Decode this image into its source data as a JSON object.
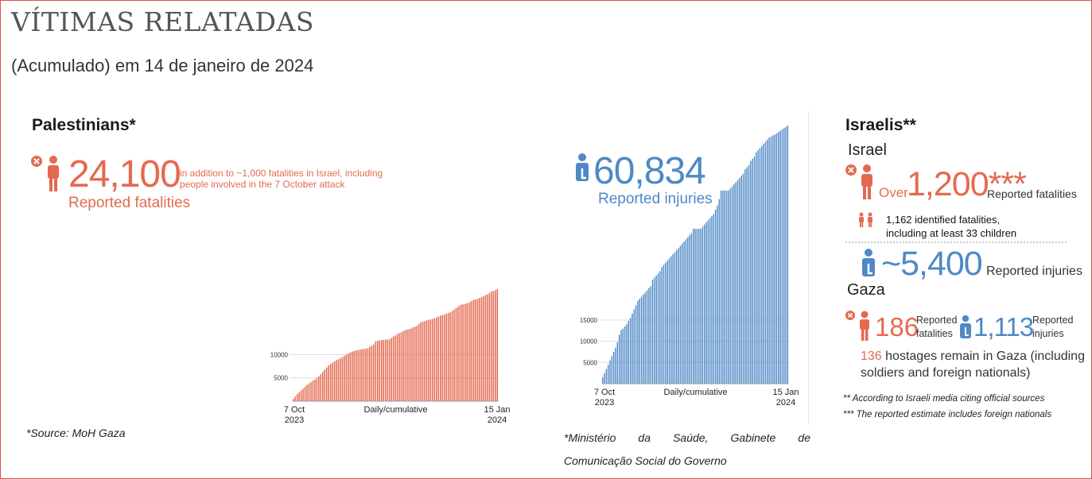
{
  "title": "VÍTIMAS RELATADAS",
  "subtitle": "(Acumulado) em 14 de janeiro de 2024",
  "palestinians": {
    "heading": "Palestinians*",
    "fatalities_value": "24,100",
    "fatalities_note_line1": "in addition to ~1,000 fatalities in Israel, including",
    "fatalities_note_line2": "people involved in the 7 October attack",
    "fatalities_label": "Reported fatalities",
    "injuries_value": "60,834",
    "injuries_label": "Reported injuries",
    "source_left": "*Source: MoH Gaza",
    "source_right_line1": "*Ministério da Saúde, Gabinete de",
    "source_right_line2": "Comunicação Social do Governo"
  },
  "israelis": {
    "heading": "Israelis**",
    "israel_heading": "Israel",
    "israel_over": "Over",
    "israel_fatalities_value": "1,200***",
    "israel_fatalities_label": "Reported fatalities",
    "identified_line1": "1,162 identified fatalities,",
    "identified_line2": "including at least 33 children",
    "israel_injuries_value": "~5,400",
    "israel_injuries_label": "Reported injuries",
    "gaza_heading": "Gaza",
    "gaza_fatalities_value": "186",
    "gaza_fatalities_label_line1": "Reported",
    "gaza_fatalities_label_line2": "fatalities",
    "gaza_injuries_value": "1,113",
    "gaza_injuries_label_line1": "Reported",
    "gaza_injuries_label_line2": "injuries",
    "hostages_number": "136",
    "hostages_text_line1": "hostages remain in Gaza (including",
    "hostages_text_line2": "soldiers and foreign nationals)",
    "footnote1": "** According to Israeli media citing official sources",
    "footnote2": "*** The reported estimate includes foreign nationals"
  },
  "colors": {
    "red": "#e46a4f",
    "blue": "#4f89c6",
    "text": "#333333"
  },
  "icons": [
    "fatality-person-icon",
    "injured-person-icon",
    "children-icon"
  ],
  "chart_data": [
    {
      "type": "bar",
      "name": "fatalities",
      "color": "#e46a4f",
      "xlabel": "Daily/cumulative",
      "x_start_label": [
        "7 Oct",
        "2023"
      ],
      "x_end_label": [
        "15 Jan",
        "2024"
      ],
      "ylim": [
        0,
        24100
      ],
      "yticks": [
        5000,
        10000
      ],
      "values": [
        500,
        1000,
        1500,
        1900,
        2300,
        2700,
        3100,
        3500,
        3800,
        4100,
        4400,
        4650,
        5000,
        5350,
        5800,
        6300,
        6800,
        7250,
        7700,
        8000,
        8300,
        8550,
        8800,
        9000,
        9200,
        9500,
        9750,
        10000,
        10200,
        10500,
        10650,
        10800,
        10900,
        11000,
        11100,
        11200,
        11250,
        11300,
        11400,
        11700,
        11950,
        12200,
        12900,
        13000,
        13100,
        13150,
        13200,
        13250,
        13250,
        13300,
        13600,
        13900,
        14100,
        14500,
        14600,
        14800,
        15100,
        15300,
        15400,
        15500,
        15600,
        15900,
        16000,
        16200,
        16600,
        17000,
        17100,
        17200,
        17400,
        17500,
        17600,
        17700,
        17800,
        18000,
        18200,
        18400,
        18500,
        18600,
        18800,
        19000,
        19100,
        19400,
        19700,
        20000,
        20300,
        20700,
        20800,
        20900,
        21000,
        21100,
        21300,
        21600,
        21800,
        21900,
        22000,
        22200,
        22400,
        22600,
        22800,
        23000,
        23300,
        23600,
        23700,
        23900,
        24100
      ]
    },
    {
      "type": "bar",
      "name": "injuries",
      "color": "#4f89c6",
      "xlabel": "Daily/cumulative",
      "x_start_label": [
        "7 Oct",
        "2023"
      ],
      "x_end_label": [
        "15 Jan",
        "2024"
      ],
      "ylim": [
        0,
        60834
      ],
      "yticks": [
        5000,
        10000,
        15000
      ],
      "values": [
        1500,
        2500,
        3500,
        4500,
        5500,
        6500,
        7500,
        8500,
        9800,
        11500,
        12600,
        13000,
        13500,
        14000,
        14800,
        15500,
        16500,
        17500,
        18500,
        19500,
        20000,
        20500,
        21000,
        21500,
        22000,
        22500,
        23000,
        24500,
        25000,
        25500,
        26000,
        26500,
        27500,
        28000,
        28500,
        29000,
        29500,
        30000,
        30500,
        31000,
        31500,
        32000,
        32500,
        33000,
        33500,
        34000,
        34500,
        35000,
        35500,
        36500,
        36500,
        36500,
        36500,
        36500,
        37000,
        37500,
        38000,
        38500,
        39000,
        39500,
        40000,
        41000,
        42000,
        43500,
        45500,
        45500,
        45500,
        45500,
        45500,
        46000,
        46500,
        47000,
        47500,
        48000,
        48500,
        49000,
        49500,
        50500,
        51000,
        51500,
        52500,
        53000,
        53500,
        54500,
        55000,
        55500,
        56000,
        56500,
        57000,
        57500,
        58000,
        58200,
        58500,
        58700,
        59000,
        59300,
        59600,
        59900,
        60200,
        60500,
        60834
      ]
    }
  ]
}
